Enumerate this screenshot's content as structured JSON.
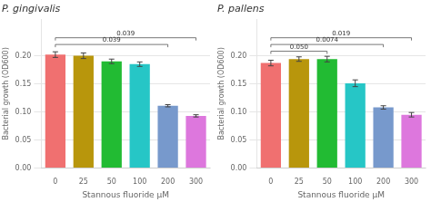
{
  "chart_data": [
    {
      "type": "bar",
      "title": "P. gingivalis",
      "xlabel": "Stannous fluoride μM",
      "ylabel": "Bacterial growth (OD600)",
      "categories": [
        "0",
        "25",
        "50",
        "100",
        "200",
        "300"
      ],
      "values": [
        0.202,
        0.2,
        0.19,
        0.185,
        0.111,
        0.093
      ],
      "errors": [
        0.005,
        0.005,
        0.004,
        0.004,
        0.002,
        0.002
      ],
      "colors": [
        "#f07070",
        "#b8960c",
        "#22bb33",
        "#26c6c6",
        "#7799cc",
        "#dd77dd"
      ],
      "ylim": [
        0,
        0.265
      ],
      "yticks": [
        {
          "value": 0,
          "label": "0.00"
        },
        {
          "value": 0.05,
          "label": "0.05"
        },
        {
          "value": 0.1,
          "label": "0.10"
        },
        {
          "value": 0.15,
          "label": "0.15"
        },
        {
          "value": 0.2,
          "label": "0.20"
        }
      ],
      "grid": "y",
      "annotations": [
        {
          "x1": 0,
          "x2": 5,
          "y": 0.232,
          "label": "0.039"
        },
        {
          "x1": 0,
          "x2": 4,
          "y": 0.22,
          "label": "0.039"
        }
      ]
    },
    {
      "type": "bar",
      "title": "P. pallens",
      "xlabel": "Stannous fluoride μM",
      "ylabel": "Bacterial growth (OD600)",
      "categories": [
        "0",
        "25",
        "50",
        "100",
        "200",
        "300"
      ],
      "values": [
        0.187,
        0.194,
        0.194,
        0.151,
        0.108,
        0.095
      ],
      "errors": [
        0.005,
        0.004,
        0.005,
        0.006,
        0.003,
        0.004
      ],
      "colors": [
        "#f07070",
        "#b8960c",
        "#22bb33",
        "#26c6c6",
        "#7799cc",
        "#dd77dd"
      ],
      "ylim": [
        0,
        0.265
      ],
      "yticks": [
        {
          "value": 0,
          "label": "0.00"
        },
        {
          "value": 0.05,
          "label": "0.05"
        },
        {
          "value": 0.1,
          "label": "0.10"
        },
        {
          "value": 0.15,
          "label": "0.15"
        },
        {
          "value": 0.2,
          "label": "0.20"
        }
      ],
      "grid": "y",
      "annotations": [
        {
          "x1": 0,
          "x2": 5,
          "y": 0.232,
          "label": "0.019"
        },
        {
          "x1": 0,
          "x2": 4,
          "y": 0.22,
          "label": "0.0074"
        },
        {
          "x1": 0,
          "x2": 2,
          "y": 0.208,
          "label": "0.050"
        }
      ]
    }
  ]
}
